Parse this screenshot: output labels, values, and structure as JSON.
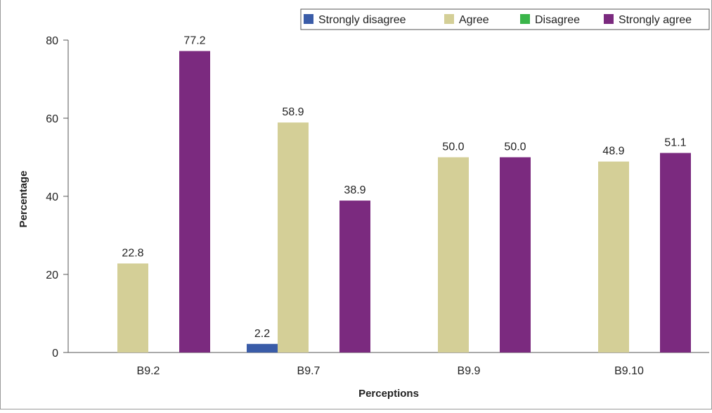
{
  "chart_data": {
    "type": "bar",
    "categories": [
      "B9.2",
      "B9.7",
      "B9.9",
      "B9.10"
    ],
    "series": [
      {
        "name": "Strongly disagree",
        "color": "#3a5ca8",
        "values": [
          0,
          2.2,
          0,
          0
        ],
        "labels": [
          "",
          "2.2",
          "",
          ""
        ]
      },
      {
        "name": "Agree",
        "color": "#d4cf97",
        "values": [
          22.8,
          58.9,
          50.0,
          48.9
        ],
        "labels": [
          "22.8",
          "58.9",
          "50.0",
          "48.9"
        ]
      },
      {
        "name": "Disagree",
        "color": "#3ab54a",
        "values": [
          0,
          0,
          0,
          0
        ],
        "labels": [
          "",
          "",
          "",
          ""
        ]
      },
      {
        "name": "Strongly agree",
        "color": "#7b2a7f",
        "values": [
          77.2,
          38.9,
          50.0,
          51.1
        ],
        "labels": [
          "77.2",
          "38.9",
          "50.0",
          "51.1"
        ]
      }
    ],
    "xlabel": "Perceptions",
    "ylabel": "Percentage",
    "ylim": [
      0,
      80
    ],
    "yticks": [
      0,
      20,
      40,
      60,
      80
    ],
    "legend_position": "top-right",
    "grid": false
  }
}
